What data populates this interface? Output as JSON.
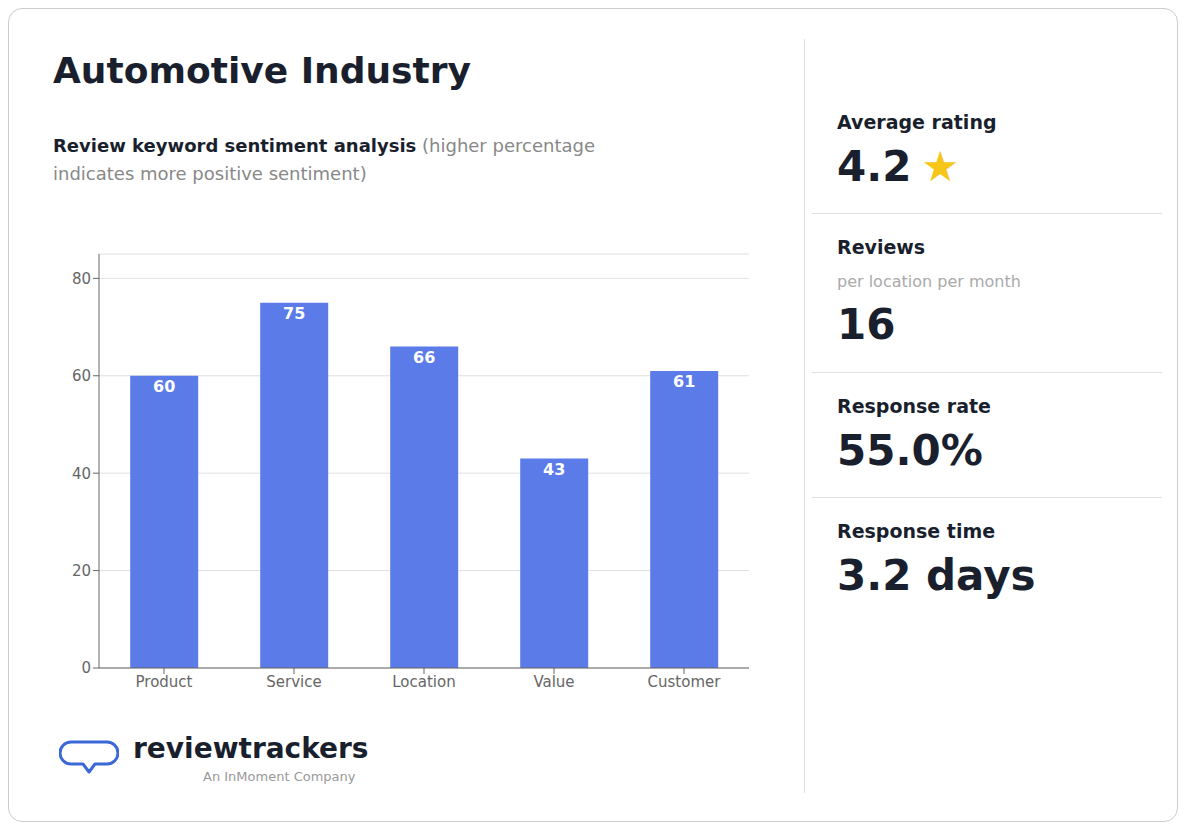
{
  "chart_data": {
    "type": "bar",
    "title": "Automotive Industry",
    "subtitle": [
      "Review keyword sentiment analysis",
      "(higher percentage",
      "indicates more positive sentiment)"
    ],
    "categories": [
      "Product",
      "Service",
      "Location",
      "Value",
      "Customer"
    ],
    "values": [
      60,
      75,
      66,
      43,
      61
    ],
    "color": "#5B7BE8",
    "ylim": [
      0,
      85
    ],
    "yticks": [
      0,
      20,
      40,
      60,
      80
    ],
    "grid": true,
    "data_labels": true,
    "annotations": {
      "stats": [
        {
          "label": "Average rating",
          "value": "4.2",
          "symbol": "★",
          "color": "#f5c518"
        },
        {
          "label": "Reviews",
          "sub": "per location per month",
          "value": "16"
        },
        {
          "label": "Response rate",
          "value": "55.0%"
        },
        {
          "label": "Response time",
          "value": "3.2 days"
        }
      ],
      "logo": [
        "reviewtrackers",
        "An InMoment Company"
      ]
    }
  }
}
